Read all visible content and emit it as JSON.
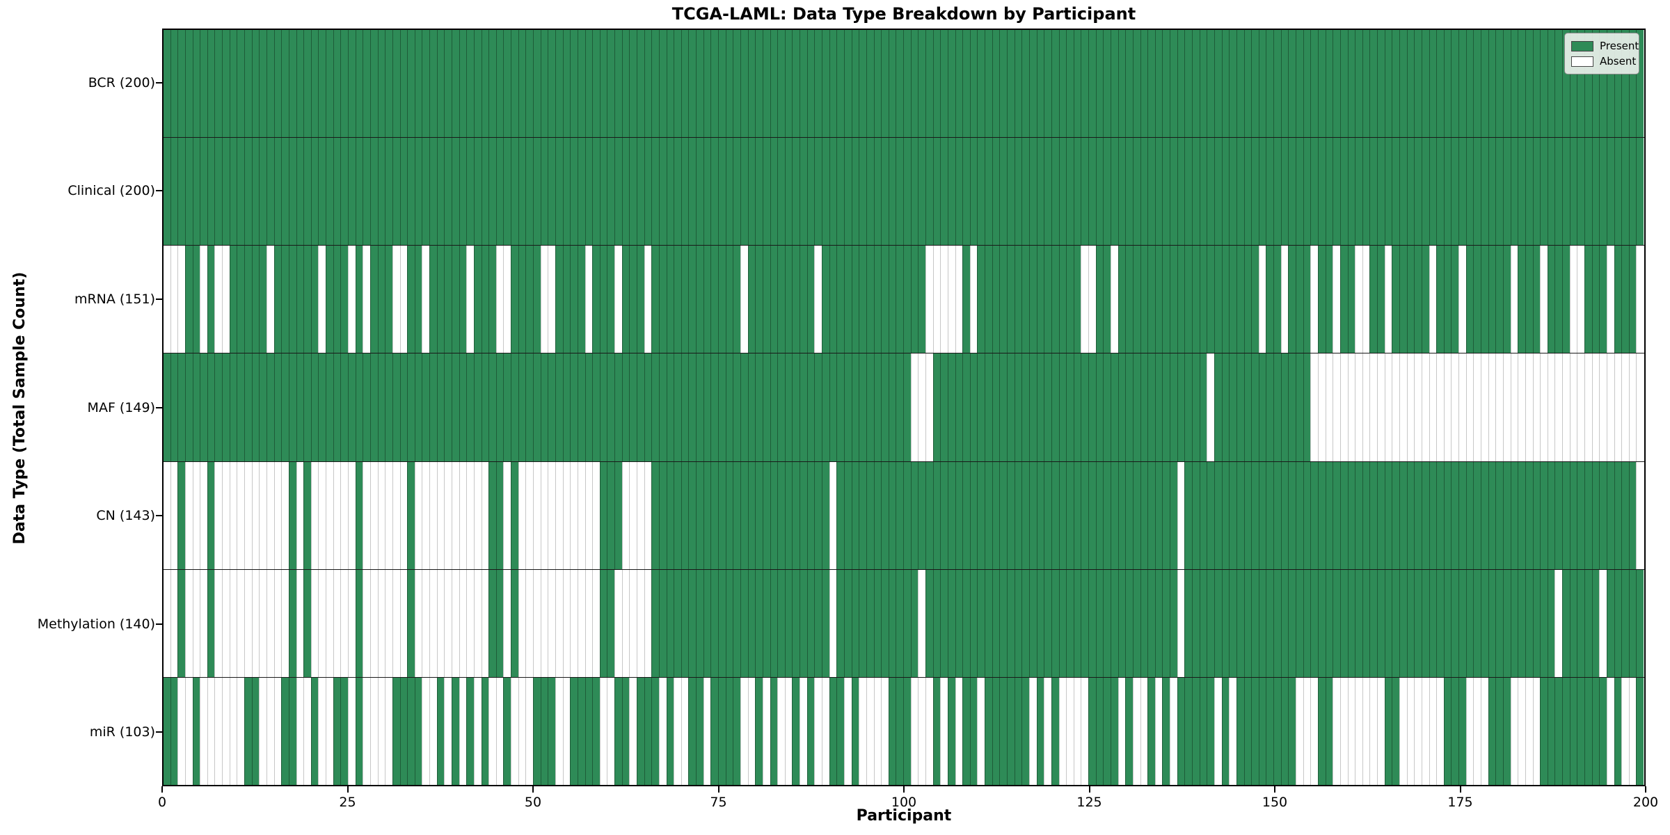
{
  "title": "TCGA-LAML: Data Type Breakdown by Participant",
  "x_axis": {
    "label": "Participant",
    "ticks": [
      0,
      25,
      50,
      75,
      100,
      125,
      150,
      175,
      200
    ],
    "range": [
      0,
      200
    ]
  },
  "y_axis": {
    "label": "Data Type (Total Sample Count)"
  },
  "legend": {
    "items": [
      {
        "label": "Present",
        "color": "#2e8b57"
      },
      {
        "label": "Absent",
        "color": "#ffffff"
      }
    ]
  },
  "colors": {
    "present": "#2e8b57",
    "absent": "#ffffff"
  },
  "chart_data": {
    "type": "heatmap",
    "title": "TCGA-LAML: Data Type Breakdown by Participant",
    "xlabel": "Participant",
    "ylabel": "Data Type (Total Sample Count)",
    "n_participants": 200,
    "value_encoding": {
      "1": "Present",
      "0": "Absent"
    },
    "grid": "cell-borders",
    "legend_position": "upper right",
    "rows": [
      {
        "label": "BCR (200)",
        "name": "BCR",
        "total": 200,
        "values": "11111111111111111111111111111111111111111111111111111111111111111111111111111111111111111111111111111111111111111111111111111111111111111111111111111111111111111111111111111111111111111111111111111111"
      },
      {
        "label": "Clinical (200)",
        "name": "Clinical",
        "total": 200,
        "values": "11111111111111111111111111111111111111111111111111111111111111111111111111111111111111111111111111111111111111111111111111111111111111111111111111111111111111111111111111111111111111111111111111111111"
      },
      {
        "label": "mRNA (151)",
        "name": "mRNA",
        "total": 151,
        "values": "00011010011111011111101110101110011011111011100111100111101110111011111111111101111111110111111111111110000010111111111111110011011111111111111111110110111011011001101111101110111111011101110011101110011110"
      },
      {
        "label": "MAF (149)",
        "name": "MAF",
        "total": 149,
        "values": "11111111111111111111111111111111111111111111111111111111111111111111111111111111111111111111111111111000111111111111111111111111111111111111101111111111111000000000000000000000000000000000000000000000"
      },
      {
        "label": "CN (143)",
        "name": "CN",
        "total": 143,
        "values": "00100010000000000101000000100000010000000000110100000000000111000011111111111111111111111101111111111111111111111111111111111111111111111011111111111111111111111111111111111111111111111111111111111110111111111"
      },
      {
        "label": "Methylation (140)",
        "name": "Methylation",
        "total": 140,
        "values": "00100010000000000101000000100000010000000000110100000000000110000011111111111111111111111101111111111101111111111111111111111111111111111011111111111111111111111111111111111111111111111111011111011111101111111"
      },
      {
        "label": "miR (103)",
        "name": "miR",
        "total": 103,
        "values": "11001000000110001100100110100001111001010101001000111001111001101110100110111100101001010011010000111000101011011111101010000111101001010111110101111111100011000000011000000111000111000011111111101001"
      }
    ]
  }
}
